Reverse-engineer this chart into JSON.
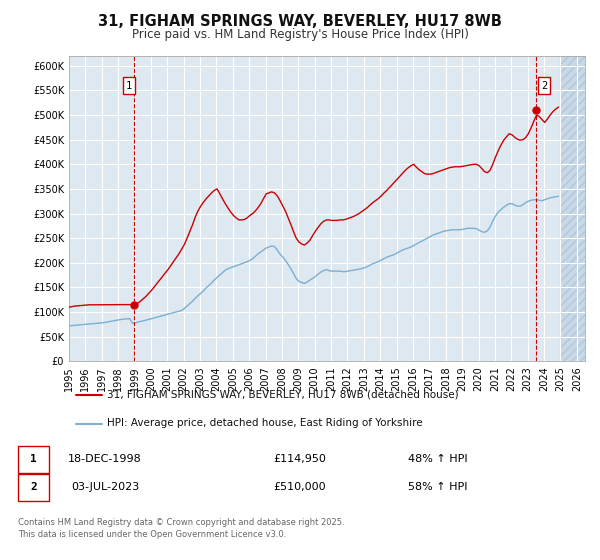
{
  "title": "31, FIGHAM SPRINGS WAY, BEVERLEY, HU17 8WB",
  "subtitle": "Price paid vs. HM Land Registry's House Price Index (HPI)",
  "title_fontsize": 10.5,
  "subtitle_fontsize": 8.5,
  "background_color": "#ffffff",
  "plot_bg_color": "#dde8f0",
  "grid_color": "#ffffff",
  "hatch_color": "#c8d8e8",
  "xlim": [
    1995.0,
    2026.5
  ],
  "ylim": [
    0,
    620000
  ],
  "yticks": [
    0,
    50000,
    100000,
    150000,
    200000,
    250000,
    300000,
    350000,
    400000,
    450000,
    500000,
    550000,
    600000
  ],
  "ytick_labels": [
    "£0",
    "£50K",
    "£100K",
    "£150K",
    "£200K",
    "£250K",
    "£300K",
    "£350K",
    "£400K",
    "£450K",
    "£500K",
    "£550K",
    "£600K"
  ],
  "xtick_years": [
    1995,
    1996,
    1997,
    1998,
    1999,
    2000,
    2001,
    2002,
    2003,
    2004,
    2005,
    2006,
    2007,
    2008,
    2009,
    2010,
    2011,
    2012,
    2013,
    2014,
    2015,
    2016,
    2017,
    2018,
    2019,
    2020,
    2021,
    2022,
    2023,
    2024,
    2025,
    2026
  ],
  "sale1_x": 1998.96,
  "sale1_y": 114950,
  "sale1_label": "1",
  "sale2_x": 2023.5,
  "sale2_y": 510000,
  "sale2_label": "2",
  "vline1_x": 1998.96,
  "vline2_x": 2023.5,
  "vline_color": "#cc0000",
  "red_line_color": "#cc0000",
  "blue_line_color": "#7bafd4",
  "legend_entries": [
    "31, FIGHAM SPRINGS WAY, BEVERLEY, HU17 8WB (detached house)",
    "HPI: Average price, detached house, East Riding of Yorkshire"
  ],
  "annotation1_date": "18-DEC-1998",
  "annotation1_price": "£114,950",
  "annotation1_pct": "48% ↑ HPI",
  "annotation2_date": "03-JUL-2023",
  "annotation2_price": "£510,000",
  "annotation2_pct": "58% ↑ HPI",
  "footer_text": "Contains HM Land Registry data © Crown copyright and database right 2025.\nThis data is licensed under the Open Government Licence v3.0.",
  "hpi_data": {
    "years": [
      1995.04,
      1995.21,
      1995.37,
      1995.54,
      1995.71,
      1995.87,
      1996.04,
      1996.21,
      1996.37,
      1996.54,
      1996.71,
      1996.87,
      1997.04,
      1997.21,
      1997.37,
      1997.54,
      1997.71,
      1997.87,
      1998.04,
      1998.21,
      1998.37,
      1998.54,
      1998.71,
      1998.87,
      1999.04,
      1999.21,
      1999.37,
      1999.54,
      1999.71,
      1999.87,
      2000.04,
      2000.21,
      2000.37,
      2000.54,
      2000.71,
      2000.87,
      2001.04,
      2001.21,
      2001.37,
      2001.54,
      2001.71,
      2001.87,
      2002.04,
      2002.21,
      2002.37,
      2002.54,
      2002.71,
      2002.87,
      2003.04,
      2003.21,
      2003.37,
      2003.54,
      2003.71,
      2003.87,
      2004.04,
      2004.21,
      2004.37,
      2004.54,
      2004.71,
      2004.87,
      2005.04,
      2005.21,
      2005.37,
      2005.54,
      2005.71,
      2005.87,
      2006.04,
      2006.21,
      2006.37,
      2006.54,
      2006.71,
      2006.87,
      2007.04,
      2007.21,
      2007.37,
      2007.54,
      2007.71,
      2007.87,
      2008.04,
      2008.21,
      2008.37,
      2008.54,
      2008.71,
      2008.87,
      2009.04,
      2009.21,
      2009.37,
      2009.54,
      2009.71,
      2009.87,
      2010.04,
      2010.21,
      2010.37,
      2010.54,
      2010.71,
      2010.87,
      2011.04,
      2011.21,
      2011.37,
      2011.54,
      2011.71,
      2011.87,
      2012.04,
      2012.21,
      2012.37,
      2012.54,
      2012.71,
      2012.87,
      2013.04,
      2013.21,
      2013.37,
      2013.54,
      2013.71,
      2013.87,
      2014.04,
      2014.21,
      2014.37,
      2014.54,
      2014.71,
      2014.87,
      2015.04,
      2015.21,
      2015.37,
      2015.54,
      2015.71,
      2015.87,
      2016.04,
      2016.21,
      2016.37,
      2016.54,
      2016.71,
      2016.87,
      2017.04,
      2017.21,
      2017.37,
      2017.54,
      2017.71,
      2017.87,
      2018.04,
      2018.21,
      2018.37,
      2018.54,
      2018.71,
      2018.87,
      2019.04,
      2019.21,
      2019.37,
      2019.54,
      2019.71,
      2019.87,
      2020.04,
      2020.21,
      2020.37,
      2020.54,
      2020.71,
      2020.87,
      2021.04,
      2021.21,
      2021.37,
      2021.54,
      2021.71,
      2021.87,
      2022.04,
      2022.21,
      2022.37,
      2022.54,
      2022.71,
      2022.87,
      2023.04,
      2023.21,
      2023.37,
      2023.54,
      2023.71,
      2023.87,
      2024.04,
      2024.21,
      2024.37,
      2024.54,
      2024.71,
      2024.87
    ],
    "values": [
      72000,
      72500,
      73000,
      73500,
      74000,
      74500,
      75000,
      75500,
      76000,
      76500,
      77000,
      77500,
      78000,
      79000,
      80000,
      81000,
      82000,
      83000,
      84000,
      85000,
      85500,
      86000,
      86500,
      77000,
      78000,
      79500,
      81000,
      82000,
      83500,
      85000,
      86500,
      88000,
      89500,
      91000,
      92500,
      94000,
      95500,
      97000,
      98500,
      100000,
      101500,
      103000,
      107000,
      112000,
      117000,
      122000,
      128000,
      133000,
      138000,
      143000,
      149000,
      154000,
      159000,
      165000,
      170000,
      175000,
      180000,
      185000,
      188000,
      190000,
      192000,
      194000,
      196000,
      198000,
      200000,
      202000,
      205000,
      208000,
      213000,
      218000,
      222000,
      226000,
      230000,
      232000,
      234000,
      233000,
      226000,
      218000,
      212000,
      205000,
      197000,
      188000,
      178000,
      168000,
      162000,
      160000,
      158000,
      161000,
      165000,
      168000,
      172000,
      177000,
      181000,
      184000,
      186000,
      184000,
      183000,
      183000,
      183000,
      183000,
      182000,
      182000,
      183000,
      184000,
      185000,
      186000,
      187000,
      188000,
      190000,
      192000,
      195000,
      198000,
      200000,
      202000,
      205000,
      208000,
      211000,
      213000,
      215000,
      217000,
      220000,
      223000,
      226000,
      228000,
      230000,
      232000,
      235000,
      238000,
      241000,
      244000,
      247000,
      250000,
      253000,
      256000,
      258000,
      260000,
      262000,
      264000,
      265000,
      266000,
      267000,
      267000,
      267000,
      267000,
      268000,
      269000,
      270000,
      270000,
      270000,
      269000,
      266000,
      263000,
      262000,
      265000,
      273000,
      285000,
      295000,
      303000,
      308000,
      313000,
      317000,
      320000,
      320000,
      317000,
      315000,
      315000,
      318000,
      322000,
      325000,
      327000,
      328000,
      328000,
      327000,
      326000,
      328000,
      330000,
      332000,
      333000,
      334000,
      335000
    ]
  },
  "property_data": {
    "years": [
      1995.04,
      1995.21,
      1995.37,
      1995.54,
      1995.71,
      1995.87,
      1996.04,
      1996.21,
      1996.37,
      1996.54,
      1996.71,
      1996.87,
      1997.04,
      1997.21,
      1997.37,
      1997.54,
      1997.71,
      1997.87,
      1998.04,
      1998.21,
      1998.37,
      1998.54,
      1998.71,
      1998.87,
      1999.04,
      1999.21,
      1999.37,
      1999.54,
      1999.71,
      1999.87,
      2000.04,
      2000.21,
      2000.37,
      2000.54,
      2000.71,
      2000.87,
      2001.04,
      2001.21,
      2001.37,
      2001.54,
      2001.71,
      2001.87,
      2002.04,
      2002.21,
      2002.37,
      2002.54,
      2002.71,
      2002.87,
      2003.04,
      2003.21,
      2003.37,
      2003.54,
      2003.71,
      2003.87,
      2004.04,
      2004.21,
      2004.37,
      2004.54,
      2004.71,
      2004.87,
      2005.04,
      2005.21,
      2005.37,
      2005.54,
      2005.71,
      2005.87,
      2006.04,
      2006.21,
      2006.37,
      2006.54,
      2006.71,
      2006.87,
      2007.04,
      2007.21,
      2007.37,
      2007.54,
      2007.71,
      2007.87,
      2008.04,
      2008.21,
      2008.37,
      2008.54,
      2008.71,
      2008.87,
      2009.04,
      2009.21,
      2009.37,
      2009.54,
      2009.71,
      2009.87,
      2010.04,
      2010.21,
      2010.37,
      2010.54,
      2010.71,
      2010.87,
      2011.04,
      2011.21,
      2011.37,
      2011.54,
      2011.71,
      2011.87,
      2012.04,
      2012.21,
      2012.37,
      2012.54,
      2012.71,
      2012.87,
      2013.04,
      2013.21,
      2013.37,
      2013.54,
      2013.71,
      2013.87,
      2014.04,
      2014.21,
      2014.37,
      2014.54,
      2014.71,
      2014.87,
      2015.04,
      2015.21,
      2015.37,
      2015.54,
      2015.71,
      2015.87,
      2016.04,
      2016.21,
      2016.37,
      2016.54,
      2016.71,
      2016.87,
      2017.04,
      2017.21,
      2017.37,
      2017.54,
      2017.71,
      2017.87,
      2018.04,
      2018.21,
      2018.37,
      2018.54,
      2018.71,
      2018.87,
      2019.04,
      2019.21,
      2019.37,
      2019.54,
      2019.71,
      2019.87,
      2020.04,
      2020.21,
      2020.37,
      2020.54,
      2020.71,
      2020.87,
      2021.04,
      2021.21,
      2021.37,
      2021.54,
      2021.71,
      2021.87,
      2022.04,
      2022.21,
      2022.37,
      2022.54,
      2022.71,
      2022.87,
      2023.04,
      2023.21,
      2023.37,
      2023.54,
      2023.71,
      2023.87,
      2024.04,
      2024.21,
      2024.37,
      2024.54,
      2024.71,
      2024.87
    ],
    "values": [
      110000,
      111000,
      112000,
      112500,
      113000,
      113500,
      114000,
      114500,
      114500,
      114500,
      114500,
      114500,
      114500,
      114600,
      114700,
      114800,
      114900,
      114950,
      114950,
      114950,
      114950,
      114950,
      114950,
      114950,
      115000,
      118000,
      122000,
      127000,
      132000,
      138000,
      144000,
      151000,
      158000,
      165000,
      172000,
      179000,
      186000,
      194000,
      202000,
      210000,
      218000,
      227000,
      237000,
      250000,
      263000,
      277000,
      293000,
      305000,
      315000,
      323000,
      330000,
      336000,
      342000,
      347000,
      350000,
      340000,
      330000,
      320000,
      311000,
      303000,
      296000,
      291000,
      287000,
      287000,
      288000,
      291000,
      296000,
      300000,
      305000,
      312000,
      320000,
      330000,
      340000,
      342000,
      344000,
      342000,
      336000,
      327000,
      316000,
      305000,
      292000,
      278000,
      263000,
      250000,
      242000,
      238000,
      236000,
      240000,
      246000,
      255000,
      264000,
      272000,
      279000,
      284000,
      287000,
      287000,
      286000,
      286000,
      286000,
      287000,
      287000,
      288000,
      290000,
      292000,
      294000,
      297000,
      300000,
      304000,
      308000,
      312000,
      317000,
      322000,
      326000,
      330000,
      335000,
      341000,
      346000,
      352000,
      358000,
      364000,
      370000,
      376000,
      382000,
      388000,
      393000,
      397000,
      400000,
      394000,
      389000,
      385000,
      381000,
      380000,
      380000,
      381000,
      383000,
      385000,
      387000,
      389000,
      391000,
      393000,
      394000,
      395000,
      395000,
      395000,
      396000,
      397000,
      398000,
      399000,
      400000,
      400000,
      397000,
      391000,
      385000,
      383000,
      388000,
      400000,
      415000,
      428000,
      439000,
      449000,
      456000,
      462000,
      460000,
      455000,
      451000,
      449000,
      450000,
      454000,
      462000,
      474000,
      487000,
      500000,
      497000,
      491000,
      485000,
      492000,
      500000,
      507000,
      512000,
      516000
    ]
  }
}
